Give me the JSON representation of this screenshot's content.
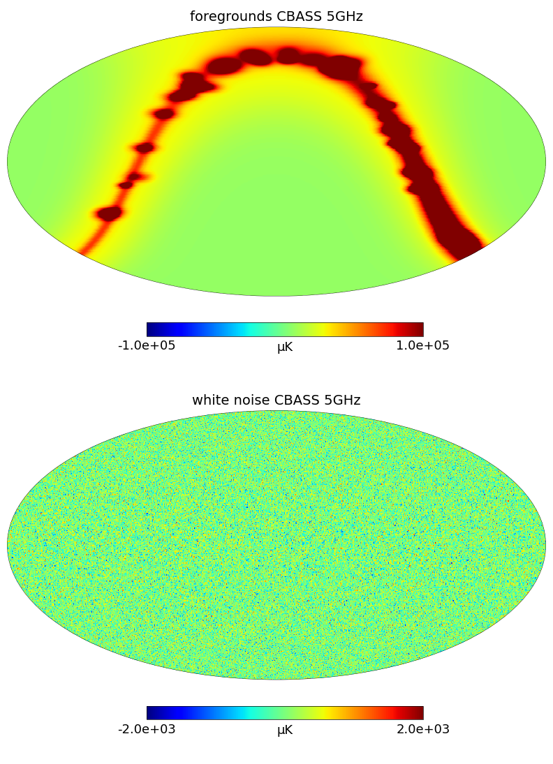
{
  "chart_data": [
    {
      "type": "mollweide_map",
      "title": "foregrounds CBASS 5GHz",
      "map": "foregrounds",
      "colorbar_range": [
        -100000,
        100000
      ],
      "colorbar_ticks": [
        {
          "value": -100000,
          "label": "-1.0e+05"
        },
        {
          "value": 100000,
          "label": "1.0e+05"
        }
      ],
      "colorbar_label": "μK",
      "tick_labels": false
    },
    {
      "type": "mollweide_map",
      "title": "white noise CBASS 5GHz",
      "map": "white noise",
      "colorbar_range": [
        -2000,
        2000
      ],
      "colorbar_ticks": [
        {
          "value": -2000,
          "label": "-2.0e+03"
        },
        {
          "value": 2000,
          "label": "2.0e+03"
        }
      ],
      "colorbar_label": "μK",
      "tick_labels": false
    }
  ]
}
